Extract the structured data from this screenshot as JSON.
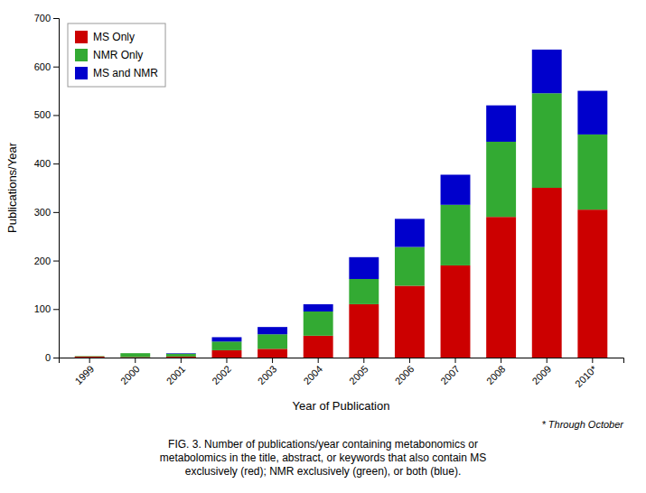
{
  "chart_data": {
    "type": "bar",
    "stacked": true,
    "categories": [
      "1999",
      "2000",
      "2001",
      "2002",
      "2003",
      "2004",
      "2005",
      "2006",
      "2007",
      "2008",
      "2009",
      "2010*"
    ],
    "series": [
      {
        "name": "MS Only",
        "color": "#cc0000",
        "values": [
          2,
          1,
          2,
          15,
          18,
          45,
          110,
          148,
          190,
          290,
          350,
          305
        ]
      },
      {
        "name": "NMR Only",
        "color": "#33aa33",
        "values": [
          1,
          8,
          6,
          18,
          30,
          50,
          52,
          80,
          125,
          155,
          195,
          155
        ]
      },
      {
        "name": "MS and NMR",
        "color": "#0000cc",
        "values": [
          0,
          0,
          1,
          9,
          15,
          15,
          45,
          58,
          62,
          75,
          90,
          90
        ]
      }
    ],
    "xlabel": "Year of Publication",
    "ylabel": "Publications/Year",
    "ylim": [
      0,
      700
    ],
    "yticks": [
      0,
      100,
      200,
      300,
      400,
      500,
      600,
      700
    ],
    "grid": false,
    "legend": "upper left",
    "note": "* Through October",
    "caption": "FIG. 3.  Number of publications/year containing metabonomics or\nmetabolomics in the title, abstract, or keywords that also contain MS\nexclusively (red); NMR exclusively (green), or both (blue)."
  }
}
